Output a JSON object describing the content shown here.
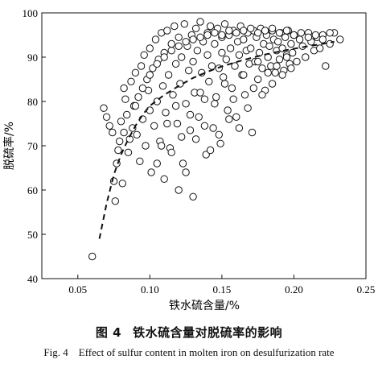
{
  "caption": {
    "cn_number": "图 4",
    "cn_title": "铁水硫含量对脱硫率的影响",
    "en": "Fig. 4    Effect of sulfur content in molten iron on desulfurization rate"
  },
  "chart_data": {
    "type": "scatter",
    "xlabel": "铁水硫含量/%",
    "ylabel": "脱硫率/%",
    "xlim": [
      0.025,
      0.25
    ],
    "ylim": [
      40,
      100
    ],
    "xticks": [
      0.05,
      0.1,
      0.15,
      0.2,
      0.25
    ],
    "xtick_labels": [
      "0.05",
      "0.10",
      "0.15",
      "0.20",
      "0.25"
    ],
    "yticks": [
      40,
      50,
      60,
      70,
      80,
      90,
      100
    ],
    "ytick_labels": [
      "40",
      "50",
      "60",
      "70",
      "80",
      "90",
      "100"
    ],
    "grid": false,
    "marker": "open-circle",
    "trend_line_style": "dashed",
    "trend_line": {
      "x": [
        0.065,
        0.07,
        0.075,
        0.08,
        0.085,
        0.09,
        0.095,
        0.1,
        0.11,
        0.12,
        0.13,
        0.14,
        0.15,
        0.16,
        0.17,
        0.18,
        0.19,
        0.2,
        0.21,
        0.22,
        0.228
      ],
      "y": [
        49.0,
        57.0,
        63.5,
        68.0,
        71.5,
        74.5,
        77.0,
        79.0,
        81.5,
        83.5,
        85.3,
        86.7,
        87.9,
        88.9,
        89.8,
        90.6,
        91.3,
        91.9,
        92.5,
        93.0,
        93.5
      ]
    },
    "points": {
      "x": [
        0.06,
        0.068,
        0.07,
        0.072,
        0.074,
        0.075,
        0.076,
        0.077,
        0.078,
        0.079,
        0.08,
        0.081,
        0.082,
        0.082,
        0.083,
        0.084,
        0.085,
        0.086,
        0.087,
        0.088,
        0.089,
        0.09,
        0.091,
        0.092,
        0.093,
        0.094,
        0.095,
        0.096,
        0.097,
        0.098,
        0.099,
        0.1,
        0.1,
        0.101,
        0.102,
        0.103,
        0.104,
        0.105,
        0.106,
        0.107,
        0.108,
        0.109,
        0.11,
        0.11,
        0.111,
        0.112,
        0.113,
        0.114,
        0.115,
        0.116,
        0.117,
        0.118,
        0.119,
        0.12,
        0.12,
        0.121,
        0.122,
        0.123,
        0.124,
        0.125,
        0.126,
        0.127,
        0.128,
        0.129,
        0.13,
        0.13,
        0.131,
        0.132,
        0.133,
        0.134,
        0.135,
        0.136,
        0.137,
        0.138,
        0.139,
        0.14,
        0.14,
        0.141,
        0.142,
        0.143,
        0.144,
        0.145,
        0.146,
        0.147,
        0.148,
        0.149,
        0.15,
        0.15,
        0.151,
        0.152,
        0.153,
        0.154,
        0.155,
        0.156,
        0.157,
        0.158,
        0.159,
        0.16,
        0.161,
        0.162,
        0.163,
        0.164,
        0.165,
        0.166,
        0.167,
        0.168,
        0.169,
        0.17,
        0.171,
        0.172,
        0.173,
        0.174,
        0.175,
        0.176,
        0.177,
        0.178,
        0.179,
        0.18,
        0.181,
        0.182,
        0.183,
        0.184,
        0.185,
        0.186,
        0.187,
        0.188,
        0.189,
        0.19,
        0.191,
        0.192,
        0.193,
        0.194,
        0.195,
        0.196,
        0.197,
        0.198,
        0.199,
        0.2,
        0.202,
        0.204,
        0.206,
        0.208,
        0.21,
        0.212,
        0.214,
        0.216,
        0.218,
        0.22,
        0.222,
        0.225,
        0.228,
        0.232,
        0.105,
        0.108,
        0.112,
        0.115,
        0.118,
        0.122,
        0.125,
        0.128,
        0.132,
        0.135,
        0.138,
        0.142,
        0.145,
        0.148,
        0.152,
        0.155,
        0.158,
        0.162,
        0.165,
        0.168,
        0.172,
        0.175,
        0.178,
        0.182,
        0.185,
        0.188,
        0.192,
        0.195,
        0.198,
        0.09,
        0.095,
        0.1,
        0.105,
        0.11,
        0.115,
        0.12,
        0.125,
        0.13,
        0.135,
        0.14,
        0.145,
        0.15,
        0.155,
        0.16,
        0.165,
        0.17,
        0.175,
        0.18,
        0.185,
        0.19,
        0.195,
        0.2,
        0.205,
        0.21,
        0.215,
        0.22,
        0.225
      ],
      "y": [
        45.0,
        78.5,
        76.5,
        74.5,
        73.0,
        62.0,
        57.5,
        66.0,
        69.0,
        71.0,
        75.5,
        61.5,
        73.0,
        83.0,
        80.5,
        77.0,
        68.5,
        71.5,
        84.5,
        74.0,
        79.0,
        86.5,
        72.5,
        81.0,
        66.5,
        88.0,
        76.0,
        90.5,
        70.0,
        85.0,
        82.5,
        92.0,
        78.0,
        64.0,
        87.5,
        74.5,
        94.0,
        80.0,
        89.5,
        71.0,
        95.5,
        83.5,
        91.0,
        62.5,
        77.5,
        96.0,
        86.0,
        69.5,
        93.0,
        81.5,
        97.0,
        88.5,
        75.0,
        94.5,
        60.0,
        84.0,
        90.0,
        66.0,
        97.5,
        79.5,
        92.5,
        87.0,
        73.5,
        95.0,
        89.0,
        58.5,
        82.0,
        96.5,
        91.5,
        76.5,
        98.0,
        86.5,
        93.5,
        80.5,
        68.0,
        95.5,
        90.5,
        84.5,
        97.0,
        88.0,
        74.0,
        93.0,
        81.0,
        96.5,
        87.5,
        70.5,
        94.5,
        91.0,
        85.5,
        97.5,
        89.5,
        78.0,
        95.0,
        92.0,
        83.0,
        96.0,
        88.0,
        76.5,
        93.5,
        90.5,
        97.0,
        86.0,
        94.0,
        81.5,
        91.5,
        95.5,
        88.5,
        92.0,
        73.0,
        96.0,
        89.0,
        94.5,
        85.0,
        91.0,
        96.5,
        87.5,
        93.0,
        82.5,
        95.0,
        90.0,
        92.5,
        88.0,
        96.0,
        94.0,
        86.5,
        91.5,
        93.5,
        89.5,
        95.5,
        92.0,
        87.0,
        94.5,
        90.5,
        96.0,
        88.5,
        93.0,
        91.0,
        95.0,
        89.0,
        94.0,
        92.5,
        90.0,
        95.5,
        93.5,
        91.5,
        94.5,
        92.0,
        95.0,
        88.0,
        93.0,
        95.5,
        94.0,
        66.0,
        70.0,
        75.0,
        68.5,
        79.0,
        72.0,
        64.0,
        77.0,
        71.5,
        82.0,
        74.5,
        69.0,
        79.5,
        72.5,
        84.0,
        76.0,
        80.5,
        74.0,
        86.0,
        78.5,
        83.0,
        89.0,
        81.5,
        86.5,
        84.0,
        88.0,
        86.0,
        90.0,
        87.5,
        79.0,
        83.0,
        86.0,
        88.5,
        90.0,
        91.5,
        92.5,
        93.5,
        94.0,
        94.5,
        95.0,
        95.5,
        95.0,
        96.0,
        95.5,
        96.0,
        96.5,
        95.5,
        96.0,
        96.5,
        95.5,
        96.0,
        95.0,
        95.5,
        94.5,
        95.0,
        94.0,
        95.5
      ]
    }
  }
}
